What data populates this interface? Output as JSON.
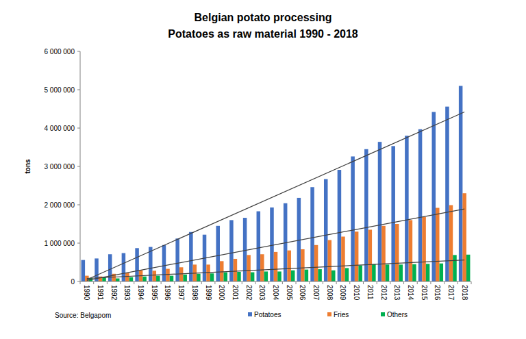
{
  "chart_data": {
    "type": "bar",
    "title": "Belgian potato processing",
    "subtitle": "Potatoes as raw material 1990 - 2018",
    "y_label": "tons",
    "source": "Source: Belgapom",
    "categories": [
      "1990",
      "1991",
      "1992",
      "1993",
      "1994",
      "1995",
      "1996",
      "1997",
      "1998",
      "1999",
      "2000",
      "2001",
      "2002",
      "2003",
      "2004",
      "2005",
      "2006",
      "2007",
      "2008",
      "2009",
      "2010",
      "2011",
      "2012",
      "2013",
      "2014",
      "2015",
      "2016",
      "2017",
      "2018"
    ],
    "series": [
      {
        "name": "Potatoes",
        "color": "#4472c4",
        "values": [
          560000,
          600000,
          710000,
          740000,
          870000,
          900000,
          950000,
          1120000,
          1290000,
          1220000,
          1450000,
          1600000,
          1660000,
          1830000,
          1930000,
          2040000,
          2180000,
          2460000,
          2670000,
          2910000,
          3260000,
          3450000,
          3640000,
          3530000,
          3800000,
          3970000,
          4420000,
          4560000,
          5100000
        ],
        "trend": [
          50000,
          4420000
        ]
      },
      {
        "name": "Fries",
        "color": "#ed7d31",
        "values": [
          150000,
          130000,
          200000,
          230000,
          290000,
          280000,
          330000,
          370000,
          440000,
          440000,
          530000,
          590000,
          690000,
          710000,
          770000,
          810000,
          840000,
          950000,
          1080000,
          1170000,
          1300000,
          1350000,
          1450000,
          1500000,
          1600000,
          1680000,
          1920000,
          1990000,
          2300000
        ],
        "trend": [
          30000,
          1890000
        ]
      },
      {
        "name": "Others",
        "color": "#00b050",
        "values": [
          90000,
          110000,
          80000,
          110000,
          130000,
          150000,
          150000,
          180000,
          200000,
          210000,
          240000,
          250000,
          240000,
          260000,
          260000,
          290000,
          310000,
          320000,
          290000,
          350000,
          420000,
          450000,
          440000,
          440000,
          450000,
          460000,
          470000,
          690000,
          700000
        ],
        "trend": [
          80000,
          560000
        ]
      }
    ],
    "ylim": [
      0,
      6000000
    ],
    "yticks": [
      0,
      {
        "value": 1000000,
        "label": "1 000 000"
      },
      {
        "value": 2000000,
        "label": "2 000 000"
      },
      {
        "value": 3000000,
        "label": "3 000 000"
      },
      {
        "value": 4000000,
        "label": "4 000 000"
      },
      {
        "value": 5000000,
        "label": "5 000 000"
      },
      {
        "value": 6000000,
        "label": "6 000 000"
      }
    ],
    "grid": false,
    "legend": "bottom"
  }
}
